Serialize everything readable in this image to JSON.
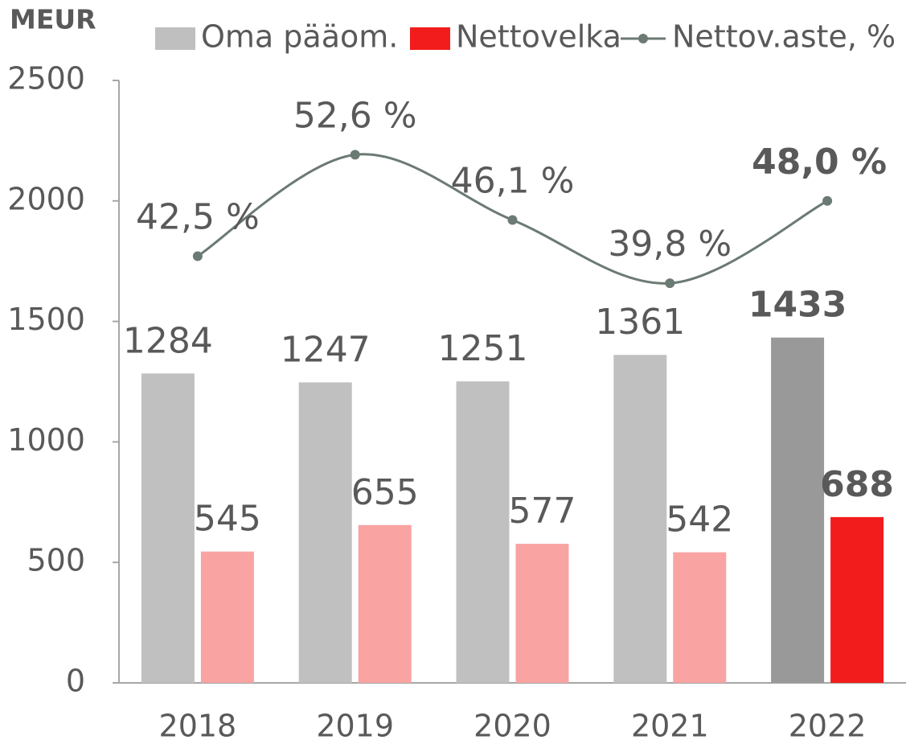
{
  "chart_data": {
    "type": "bar-line",
    "y_axis_label": "MEUR",
    "categories": [
      "2018",
      "2019",
      "2020",
      "2021",
      "2022"
    ],
    "ylim": [
      0,
      2500
    ],
    "yticks": [
      0,
      500,
      1000,
      1500,
      2000,
      2500
    ],
    "y2lim": [
      0,
      60
    ],
    "grid": false,
    "legend": "top",
    "bold_last_label": true,
    "series": [
      {
        "name": "Oma pääom.",
        "type": "bar",
        "color": "#bfbfbf",
        "point_colors": [
          "#c0c0c0",
          "#c0c0c0",
          "#c0c0c0",
          "#c0c0c0",
          "#999999"
        ],
        "values": [
          1284,
          1247,
          1251,
          1361,
          1433
        ]
      },
      {
        "name": "Nettovelka",
        "type": "bar",
        "color": "#f21c1c",
        "point_colors": [
          "#f9a3a3",
          "#f9a3a3",
          "#f9a3a3",
          "#f9a3a3",
          "#f21c1c"
        ],
        "values": [
          545,
          655,
          577,
          542,
          688
        ]
      },
      {
        "name": "Nettov.aste, %",
        "type": "line",
        "axis": "y2",
        "color": "#6b7a73",
        "values": [
          42.5,
          52.6,
          46.1,
          39.8,
          48.0
        ],
        "value_labels": [
          "42,5 %",
          "52,6 %",
          "46,1 %",
          "39,8 %",
          "48,0 %"
        ]
      }
    ]
  }
}
